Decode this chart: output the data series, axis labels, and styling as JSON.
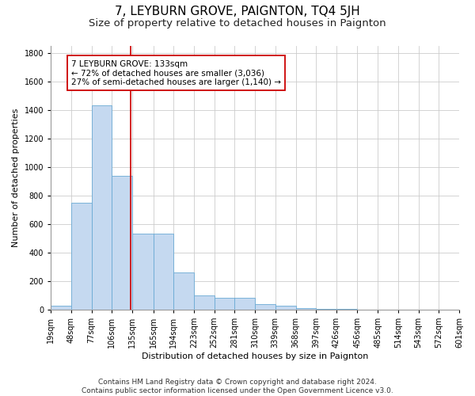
{
  "title": "7, LEYBURN GROVE, PAIGNTON, TQ4 5JH",
  "subtitle": "Size of property relative to detached houses in Paignton",
  "xlabel": "Distribution of detached houses by size in Paignton",
  "ylabel": "Number of detached properties",
  "footnote": "Contains HM Land Registry data © Crown copyright and database right 2024.\nContains public sector information licensed under the Open Government Licence v3.0.",
  "bar_edges": [
    19,
    48,
    77,
    106,
    135,
    165,
    194,
    223,
    252,
    281,
    310,
    339,
    368,
    397,
    426,
    456,
    485,
    514,
    543,
    572,
    601
  ],
  "bar_heights": [
    30,
    750,
    1430,
    940,
    530,
    530,
    260,
    100,
    85,
    80,
    40,
    25,
    10,
    5,
    3,
    2,
    1,
    1,
    0,
    0
  ],
  "bar_color": "#c5d9f0",
  "bar_edge_color": "#6aaad4",
  "vline_x": 133,
  "vline_color": "#cc0000",
  "annotation_text": "7 LEYBURN GROVE: 133sqm\n← 72% of detached houses are smaller (3,036)\n27% of semi-detached houses are larger (1,140) →",
  "annotation_box_color": "#cc0000",
  "ylim": [
    0,
    1850
  ],
  "yticks": [
    0,
    200,
    400,
    600,
    800,
    1000,
    1200,
    1400,
    1600,
    1800
  ],
  "tick_labels": [
    "19sqm",
    "48sqm",
    "77sqm",
    "106sqm",
    "135sqm",
    "165sqm",
    "194sqm",
    "223sqm",
    "252sqm",
    "281sqm",
    "310sqm",
    "339sqm",
    "368sqm",
    "397sqm",
    "426sqm",
    "456sqm",
    "485sqm",
    "514sqm",
    "543sqm",
    "572sqm",
    "601sqm"
  ],
  "grid_color": "#cccccc",
  "background_color": "#ffffff",
  "title_fontsize": 11,
  "subtitle_fontsize": 9.5,
  "annotation_fontsize": 7.5,
  "axis_label_fontsize": 8,
  "tick_fontsize": 7,
  "footnote_fontsize": 6.5
}
